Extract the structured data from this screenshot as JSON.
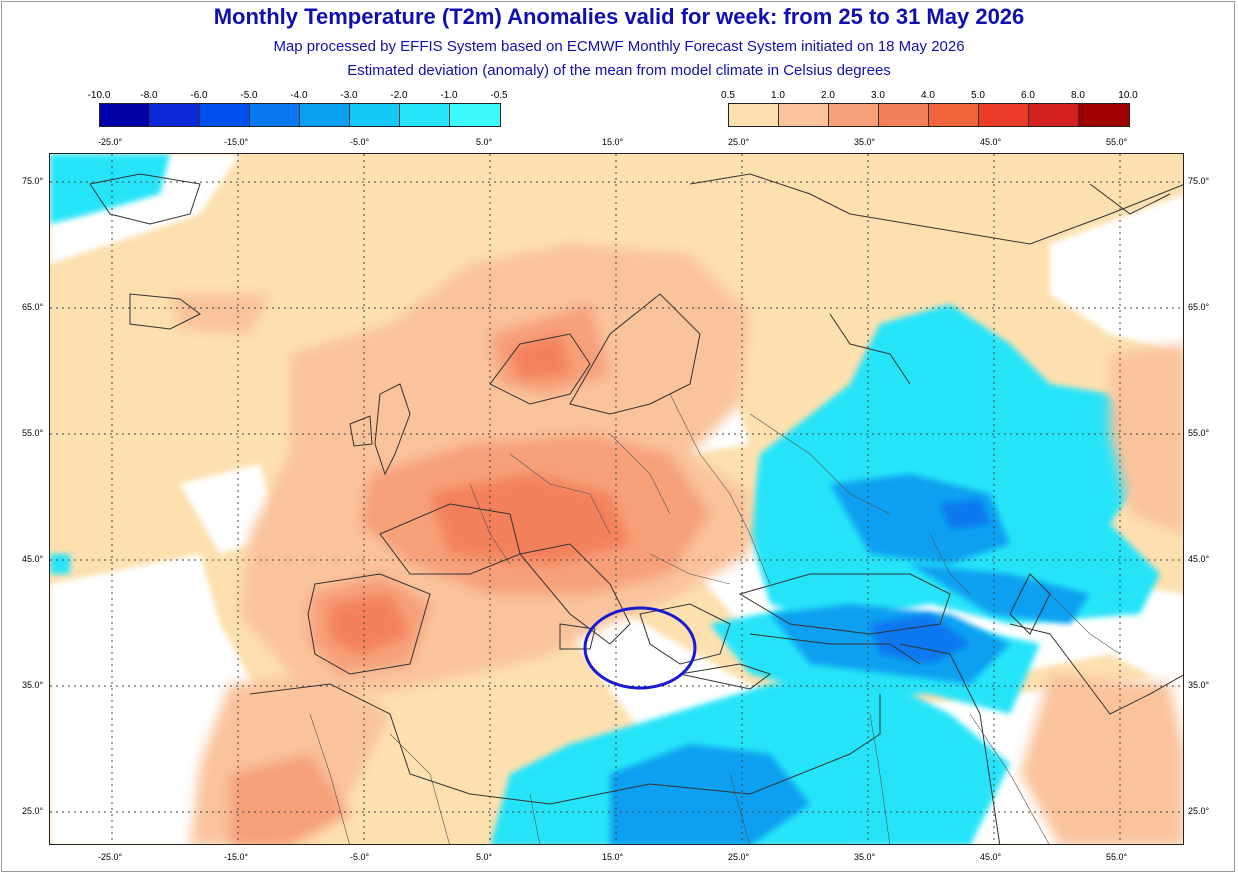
{
  "title": "Monthly Temperature (T2m) Anomalies valid for week: from 25 to 31 May 2026",
  "subtitle1": "Map processed by EFFIS System based on ECMWF Monthly Forecast System initiated on 18 May 2026",
  "subtitle2": "Estimated deviation (anomaly) of the mean from model climate in Celsius degrees",
  "legend_negative": {
    "labels": [
      "-10.0",
      "-8.0",
      "-6.0",
      "-5.0",
      "-4.0",
      "-3.0",
      "-2.0",
      "-1.0",
      "-0.5"
    ],
    "colors": [
      "#0000a8",
      "#0a28d8",
      "#0050f0",
      "#0a78f0",
      "#0aa0f0",
      "#14c8f5",
      "#28e4f8",
      "#3cfafa"
    ]
  },
  "legend_positive": {
    "labels": [
      "0.5",
      "1.0",
      "2.0",
      "3.0",
      "4.0",
      "5.0",
      "6.0",
      "8.0",
      "10.0"
    ],
    "colors": [
      "#fde0b0",
      "#f9c39c",
      "#f6a07a",
      "#f3805c",
      "#f0643c",
      "#ea3c28",
      "#d42020",
      "#a00000"
    ]
  },
  "lon_labels": [
    "-25.0°",
    "-15.0°",
    "-5.0°",
    "5.0°",
    "15.0°",
    "25.0°",
    "35.0°",
    "45.0°",
    "55.0°"
  ],
  "lat_labels": [
    "75.0°",
    "65.0°",
    "55.0°",
    "45.0°",
    "35.0°",
    "25.0°"
  ],
  "colors": {
    "title": "#1010b0",
    "circle": "#1a1ad0"
  }
}
